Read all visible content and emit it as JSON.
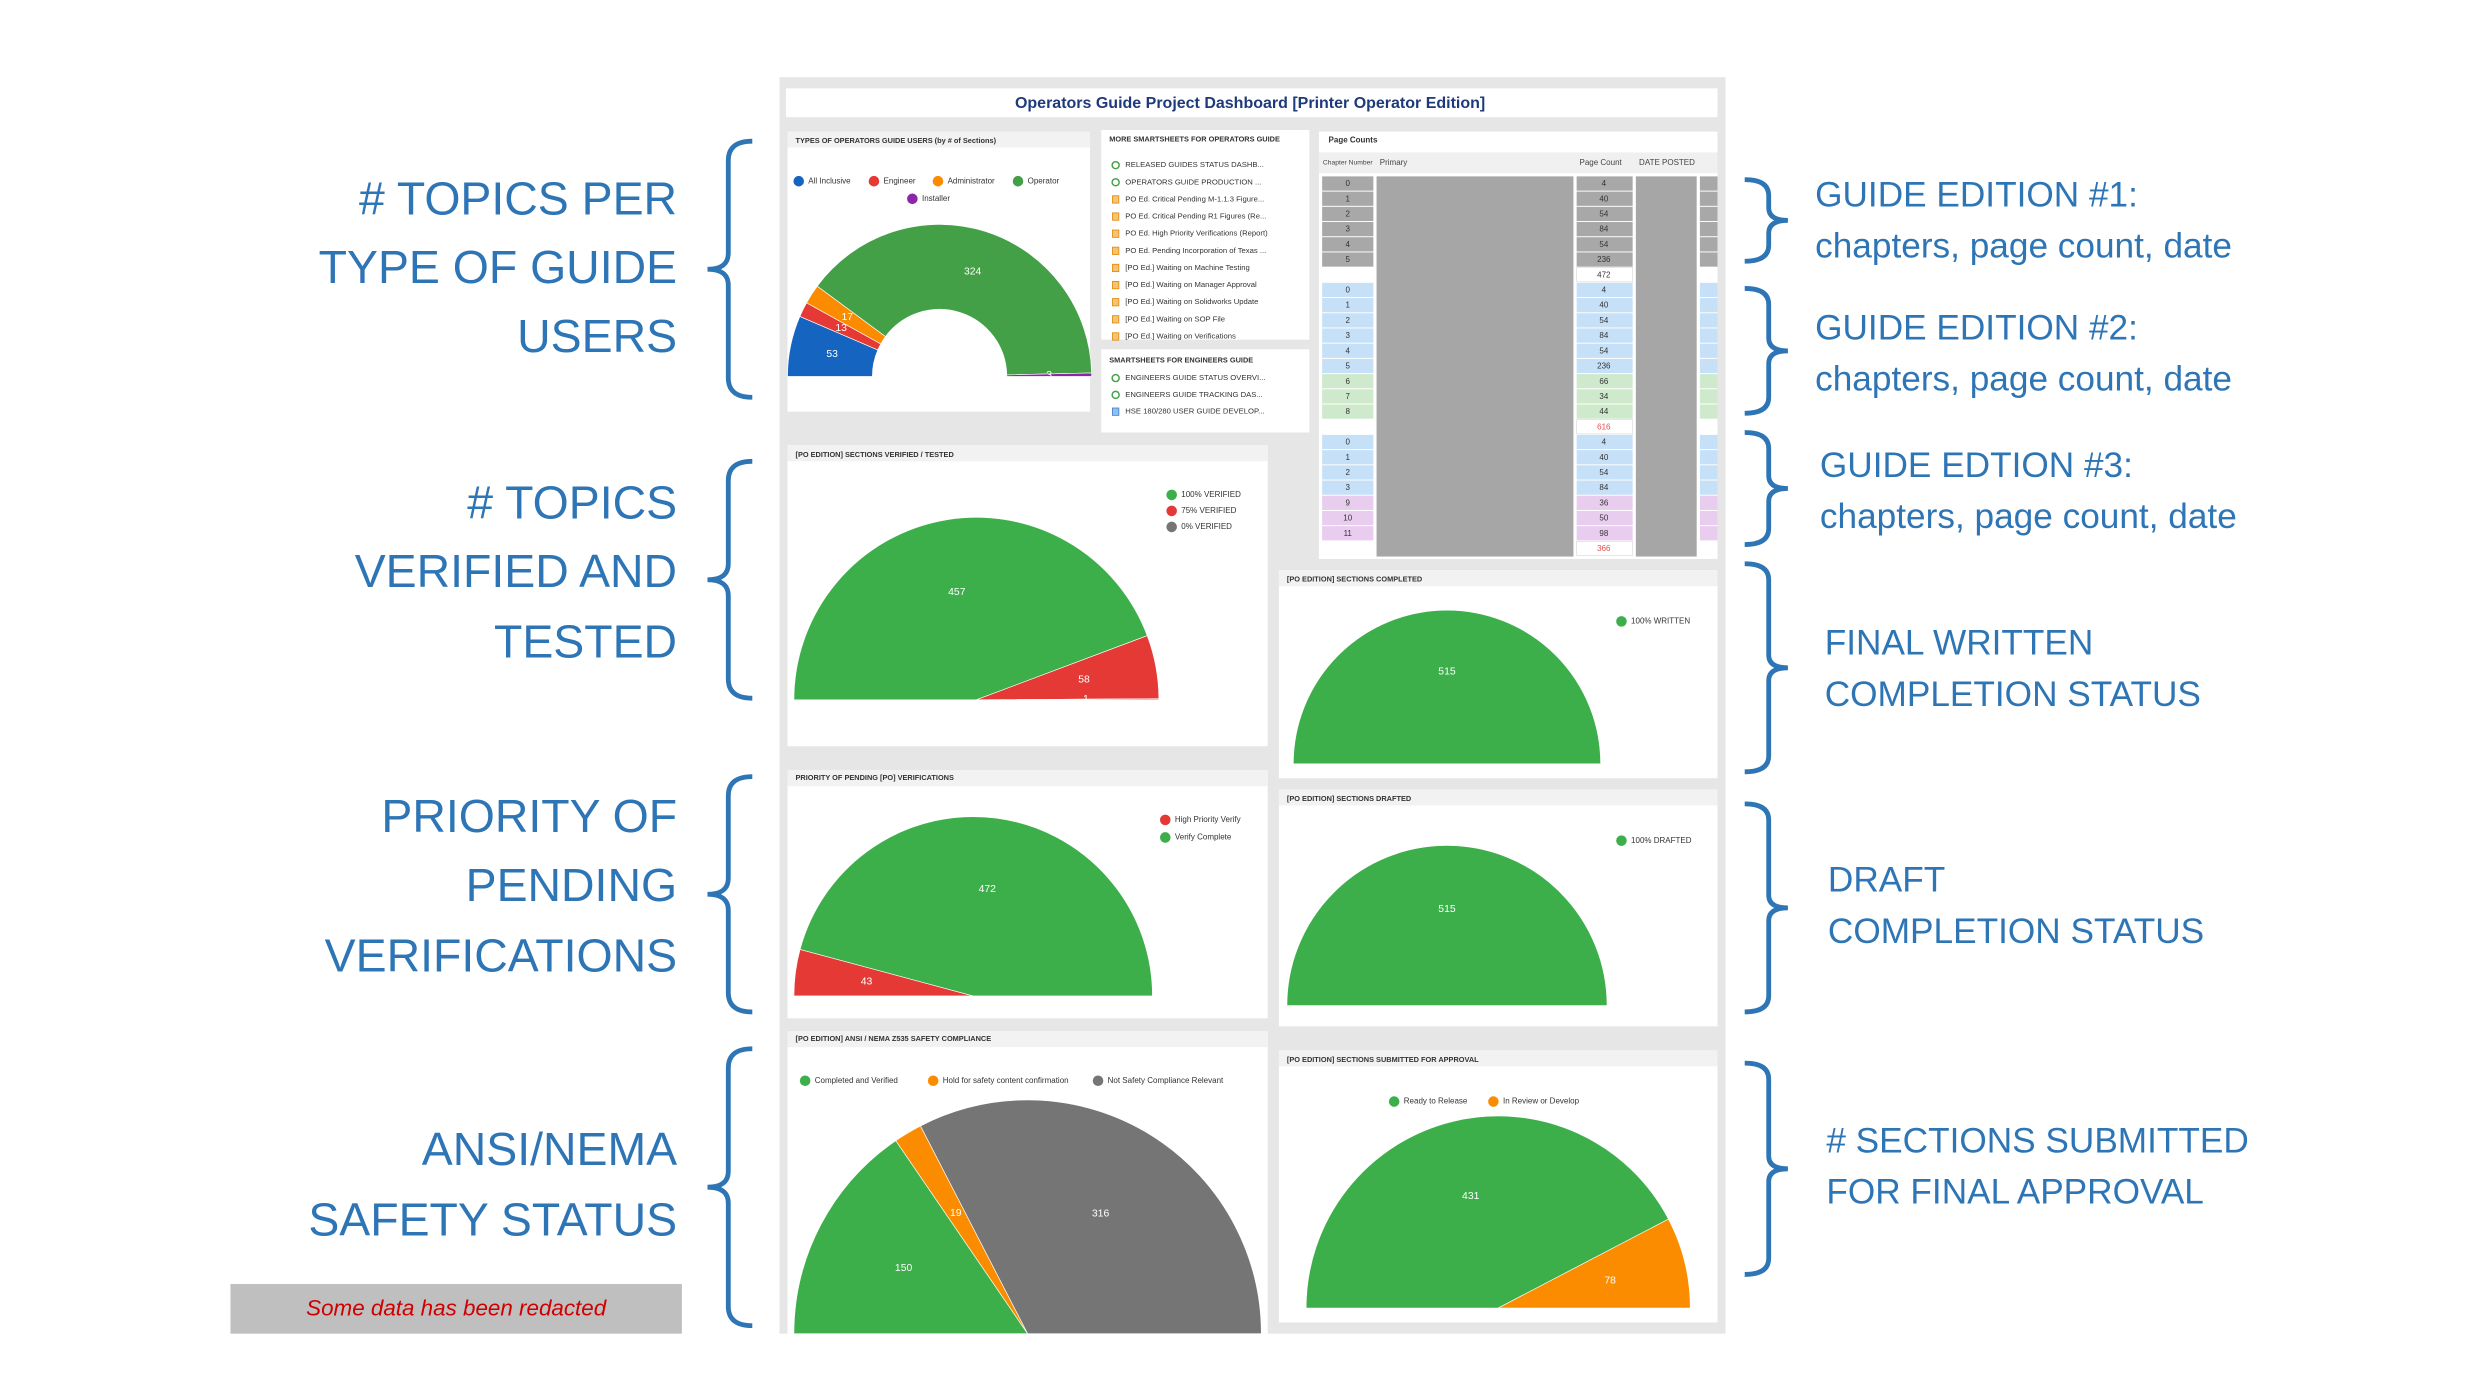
{
  "left_annotations": [
    [
      "# TOPICS PER",
      "TYPE OF GUIDE",
      "USERS"
    ],
    [
      "# TOPICS",
      "VERIFIED AND",
      "TESTED"
    ],
    [
      "PRIORITY OF",
      "PENDING",
      "VERIFICATIONS"
    ],
    [
      "ANSI/NEMA",
      "SAFETY STATUS"
    ]
  ],
  "right_annotations": [
    [
      "GUIDE EDITION #1:",
      "chapters, page count, date"
    ],
    [
      "GUIDE EDITION #2:",
      "chapters, page count, date"
    ],
    [
      "GUIDE EDTION #3:",
      "chapters, page count, date"
    ],
    [
      "FINAL WRITTEN",
      "COMPLETION STATUS"
    ],
    [
      "DRAFT",
      "COMPLETION STATUS"
    ],
    [
      "# SECTIONS SUBMITTED",
      "FOR FINAL APPROVAL"
    ]
  ],
  "redaction_note": "Some data has been redacted",
  "dashboard_title": "Operators Guide Project Dashboard [Printer Operator Edition]",
  "smartsheet_lists": [
    {
      "title": "MORE SMARTSHEETS FOR OPERATORS GUIDE",
      "items": [
        "RELEASED GUIDES STATUS DASHB...",
        "OPERATORS GUIDE PRODUCTION ...",
        "PO Ed. Critical Pending M-1.1.3 Figure...",
        "PO Ed. Critical Pending R1 Figures (Re...",
        "PO Ed. High Priority Verifications (Report)",
        "PO Ed. Pending Incorporation of Texas ...",
        "[PO Ed.] Waiting on Machine Testing",
        "[PO Ed.] Waiting on Manager Approval",
        "[PO Ed.] Waiting on Solidworks Update",
        "[PO Ed.] Waiting on SOP File",
        "[PO Ed.] Waiting on Verifications"
      ]
    },
    {
      "title": "SMARTSHEETS FOR ENGINEERS GUIDE",
      "items": [
        "ENGINEERS GUIDE STATUS OVERVI...",
        "ENGINEERS GUIDE TRACKING DAS...",
        "HSE 180/280 USER GUIDE DEVELOP..."
      ]
    }
  ],
  "page_counts": {
    "title": "Page Counts",
    "columns": [
      "Chapter Number",
      "Primary",
      "Page Count",
      "DATE POSTED"
    ],
    "editions": [
      {
        "rows": [
          [
            0,
            4
          ],
          [
            1,
            40
          ],
          [
            2,
            54
          ],
          [
            3,
            84
          ],
          [
            4,
            54
          ],
          [
            5,
            236
          ]
        ],
        "total": 472
      },
      {
        "rows": [
          [
            0,
            4
          ],
          [
            1,
            40
          ],
          [
            2,
            54
          ],
          [
            3,
            84
          ],
          [
            4,
            54
          ],
          [
            5,
            236
          ],
          [
            6,
            66
          ],
          [
            7,
            34
          ],
          [
            8,
            44
          ]
        ],
        "total": 616
      },
      {
        "rows": [
          [
            0,
            4
          ],
          [
            1,
            40
          ],
          [
            2,
            54
          ],
          [
            3,
            84
          ],
          [
            9,
            36
          ],
          [
            10,
            50
          ],
          [
            11,
            98
          ]
        ],
        "total": 366
      }
    ]
  },
  "chart_data": [
    {
      "type": "donut",
      "title": "TYPES OF OPERATORS GUIDE USERS (by # of Sections)",
      "categories": [
        "All Inclusive",
        "Engineer",
        "Administrator",
        "Operator",
        "Installer"
      ],
      "values": [
        53,
        13,
        17,
        324,
        3
      ],
      "colors": [
        "#1565c0",
        "#e53935",
        "#fb8c00",
        "#43a047",
        "#8e24aa"
      ]
    },
    {
      "type": "pie",
      "title": "[PO EDITION] SECTIONS VERIFIED / TESTED",
      "categories": [
        "100% VERIFIED",
        "75% VERIFIED",
        "0% VERIFIED"
      ],
      "values": [
        457,
        58,
        1
      ],
      "colors": [
        "#3daf4a",
        "#e53935",
        "#757575"
      ]
    },
    {
      "type": "pie",
      "title": "[PO EDITION] SECTIONS COMPLETED",
      "categories": [
        "100% WRITTEN"
      ],
      "values": [
        515
      ],
      "colors": [
        "#3daf4a"
      ]
    },
    {
      "type": "pie",
      "title": "PRIORITY OF PENDING [PO] VERIFICATIONS",
      "categories": [
        "High Priority Verify",
        "Verify Complete"
      ],
      "values": [
        43,
        472
      ],
      "colors": [
        "#e53935",
        "#3daf4a"
      ]
    },
    {
      "type": "pie",
      "title": "[PO EDITION] SECTIONS DRAFTED",
      "categories": [
        "100% DRAFTED"
      ],
      "values": [
        515
      ],
      "colors": [
        "#3daf4a"
      ]
    },
    {
      "type": "pie",
      "title": "[PO EDITION] ANSI / NEMA Z535 SAFETY COMPLIANCE",
      "categories": [
        "Completed and Verified",
        "Hold for safety content confirmation",
        "Not Safety Compliance Relevant"
      ],
      "values": [
        150,
        19,
        316
      ],
      "colors": [
        "#3daf4a",
        "#fb8c00",
        "#757575"
      ]
    },
    {
      "type": "pie",
      "title": "[PO EDITION] SECTIONS SUBMITTED FOR APPROVAL",
      "categories": [
        "Ready to Release",
        "In Review or Develop"
      ],
      "values": [
        431,
        78
      ],
      "colors": [
        "#3daf4a",
        "#fb8c00"
      ]
    }
  ]
}
